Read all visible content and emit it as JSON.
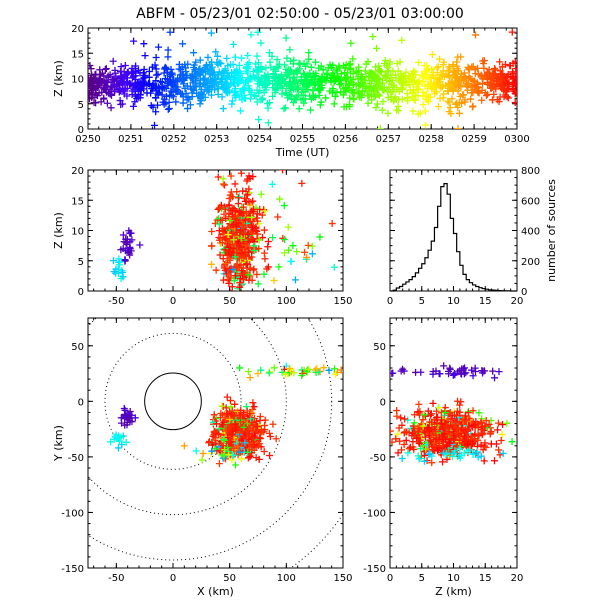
{
  "chart_data": [
    {
      "id": "time_height",
      "type": "scatter",
      "title": "ABFM - 05/23/01 02:50:00 - 05/23/01 03:00:00",
      "xlabel": "Time (UT)",
      "ylabel": "Z (km)",
      "xlim": [
        0,
        10
      ],
      "ylim": [
        0,
        20
      ],
      "x_ticks": [
        0,
        1,
        2,
        3,
        4,
        5,
        6,
        7,
        8,
        9,
        10
      ],
      "x_tick_labels": [
        "0250",
        "0251",
        "0252",
        "0253",
        "0254",
        "0255",
        "0256",
        "0257",
        "0258",
        "0259",
        "0300"
      ],
      "y_ticks": [
        0,
        5,
        10,
        15,
        20
      ],
      "y_tick_labels": [
        "0",
        "5",
        "10",
        "15",
        "20"
      ],
      "marker": "+",
      "color_by": "time",
      "series": [
        {
          "x": [
            0.0,
            0.5,
            1.0,
            1.5,
            2.0,
            2.5,
            3.0,
            3.5,
            4.0,
            4.5,
            5.0,
            5.5,
            6.0,
            6.5,
            7.0,
            7.5,
            8.0,
            8.5,
            9.0,
            9.5,
            10.0
          ],
          "y": [
            9,
            9,
            8.5,
            8.5,
            9,
            9,
            9,
            9.5,
            9.5,
            9.5,
            9.5,
            9.5,
            9,
            9,
            9,
            9,
            9,
            9,
            9,
            9,
            9
          ],
          "y_spread": [
            4,
            4,
            5,
            5,
            5,
            5,
            5,
            5,
            5,
            5,
            5,
            5,
            5,
            5,
            5,
            5,
            5,
            5,
            4,
            4,
            4
          ]
        }
      ]
    },
    {
      "id": "x_z",
      "type": "scatter",
      "xlabel": "",
      "ylabel": "Z (km)",
      "xlim": [
        -75,
        150
      ],
      "ylim": [
        0,
        20
      ],
      "x_ticks": [
        -50,
        0,
        50,
        100,
        150
      ],
      "x_tick_labels": [
        "-50",
        "0",
        "50",
        "100",
        "150"
      ],
      "y_ticks": [
        0,
        5,
        10,
        15,
        20
      ],
      "y_tick_labels": [
        "0",
        "5",
        "10",
        "15",
        "20"
      ],
      "marker": "+",
      "clusters": [
        {
          "x": 58,
          "y": 9,
          "sx": 9,
          "sy": 4,
          "n": 700
        },
        {
          "x": -40,
          "y": 7.5,
          "sx": 3,
          "sy": 1.2,
          "n": 40
        },
        {
          "x": -48,
          "y": 4,
          "sx": 2.5,
          "sy": 1,
          "n": 20
        },
        {
          "x": 90,
          "y": 8,
          "sx": 22,
          "sy": 5,
          "n": 60
        }
      ]
    },
    {
      "id": "height_histogram",
      "type": "line",
      "xlabel": "",
      "ylabel": "number of sources",
      "xlim": [
        0,
        20
      ],
      "ylim": [
        0,
        800
      ],
      "x_ticks": [
        0,
        5,
        10,
        15,
        20
      ],
      "x_tick_labels": [
        "0",
        "5",
        "10",
        "15",
        "20"
      ],
      "y_ticks": [
        0,
        200,
        400,
        600,
        800
      ],
      "y_tick_labels": [
        "0",
        "200",
        "400",
        "600",
        "800"
      ],
      "y_axis_side": "right",
      "bin_width": 0.5,
      "x": [
        0,
        0.5,
        1,
        1.5,
        2,
        2.5,
        3,
        3.5,
        4,
        4.5,
        5,
        5.5,
        6,
        6.5,
        7,
        7.5,
        8,
        8.5,
        9,
        9.5,
        10,
        10.5,
        11,
        11.5,
        12,
        12.5,
        13,
        13.5,
        14,
        14.5,
        15,
        15.5,
        16,
        16.5,
        17,
        17.5,
        18,
        18.5,
        19,
        19.5
      ],
      "values": [
        0,
        5,
        20,
        30,
        45,
        60,
        75,
        95,
        120,
        150,
        180,
        220,
        270,
        330,
        420,
        560,
        690,
        710,
        640,
        480,
        380,
        260,
        170,
        110,
        75,
        55,
        40,
        30,
        22,
        16,
        12,
        8,
        6,
        4,
        3,
        2,
        1,
        1,
        0,
        0
      ]
    },
    {
      "id": "plan_view",
      "type": "scatter",
      "xlabel": "X (km)",
      "ylabel": "Y (km)",
      "xlim": [
        -75,
        150
      ],
      "ylim": [
        -150,
        75
      ],
      "x_ticks": [
        -50,
        0,
        50,
        100,
        150
      ],
      "x_tick_labels": [
        "-50",
        "0",
        "50",
        "100",
        "150"
      ],
      "y_ticks": [
        -150,
        -100,
        -50,
        0,
        50
      ],
      "y_tick_labels": [
        "-150",
        "-100",
        "-50",
        "0",
        "50"
      ],
      "marker": "+",
      "range_rings_km": [
        25,
        60,
        100,
        140,
        180
      ],
      "clusters": [
        {
          "x": 58,
          "y": -28,
          "sx": 10,
          "sy": 10,
          "n": 700
        },
        {
          "x": -40,
          "y": -14,
          "sx": 3,
          "sy": 4,
          "n": 40
        },
        {
          "x": -48,
          "y": -35,
          "sx": 3,
          "sy": 3,
          "n": 20
        },
        {
          "x": 110,
          "y": 27,
          "sx": 22,
          "sy": 2,
          "n": 60
        },
        {
          "x": 45,
          "y": -48,
          "sx": 12,
          "sy": 4,
          "n": 40
        }
      ]
    },
    {
      "id": "z_y",
      "type": "scatter",
      "xlabel": "Z (km)",
      "ylabel": "",
      "xlim": [
        0,
        20
      ],
      "ylim": [
        -150,
        75
      ],
      "x_ticks": [
        0,
        5,
        10,
        15,
        20
      ],
      "x_tick_labels": [
        "0",
        "5",
        "10",
        "15",
        "20"
      ],
      "y_ticks": [
        -150,
        -100,
        -50,
        0,
        50
      ],
      "y_tick_labels": [
        "-150",
        "-100",
        "-50",
        "0",
        "50"
      ],
      "marker": "+",
      "clusters": [
        {
          "x": 9,
          "y": -28,
          "sx": 3.5,
          "sy": 10,
          "n": 700
        },
        {
          "x": 9,
          "y": 27,
          "sx": 4,
          "sy": 2,
          "n": 60
        },
        {
          "x": 9,
          "y": -48,
          "sx": 4,
          "sy": 3,
          "n": 40
        }
      ]
    }
  ]
}
